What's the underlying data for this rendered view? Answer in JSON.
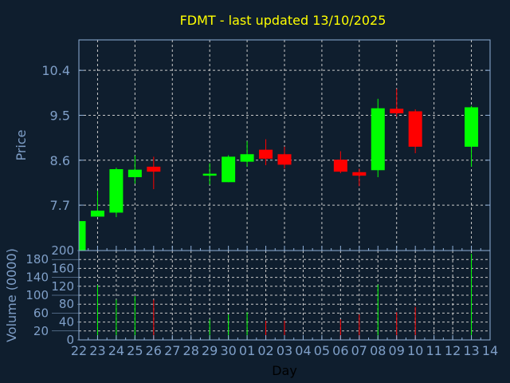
{
  "chart_data": [
    {
      "type": "candlestick",
      "title": "FDMT - last updated 13/10/2025",
      "ylabel": "Price",
      "ylim": [
        6.79,
        11.01
      ],
      "yticks": [
        7.7,
        8.6,
        9.5,
        10.4
      ],
      "grid": true,
      "colors": {
        "up": "#00ff00",
        "down": "#ff0000",
        "title": "#ffff00",
        "axis": "#7f9fc8",
        "background": "#0f1e2e"
      },
      "candles": [
        {
          "date": "2025-09-22",
          "open": 6.7,
          "high": 7.38,
          "low": 6.7,
          "close": 7.38
        },
        {
          "date": "2025-09-23",
          "open": 7.47,
          "high": 7.99,
          "low": 7.47,
          "close": 7.59
        },
        {
          "date": "2025-09-24",
          "open": 7.55,
          "high": 8.45,
          "low": 7.46,
          "close": 8.42
        },
        {
          "date": "2025-09-25",
          "open": 8.26,
          "high": 8.69,
          "low": 8.13,
          "close": 8.41
        },
        {
          "date": "2025-09-26",
          "open": 8.47,
          "high": 8.67,
          "low": 8.02,
          "close": 8.37
        },
        {
          "date": "2025-09-29",
          "open": 8.29,
          "high": 8.54,
          "low": 8.11,
          "close": 8.33
        },
        {
          "date": "2025-09-30",
          "open": 8.16,
          "high": 8.7,
          "low": 8.16,
          "close": 8.67
        },
        {
          "date": "2025-10-01",
          "open": 8.57,
          "high": 8.98,
          "low": 8.47,
          "close": 8.72
        },
        {
          "date": "2025-10-02",
          "open": 8.81,
          "high": 9.02,
          "low": 8.5,
          "close": 8.63
        },
        {
          "date": "2025-10-03",
          "open": 8.72,
          "high": 8.87,
          "low": 8.43,
          "close": 8.51
        },
        {
          "date": "2025-10-06",
          "open": 8.61,
          "high": 8.78,
          "low": 8.34,
          "close": 8.37
        },
        {
          "date": "2025-10-07",
          "open": 8.36,
          "high": 8.43,
          "low": 8.08,
          "close": 8.29
        },
        {
          "date": "2025-10-08",
          "open": 8.4,
          "high": 9.83,
          "low": 8.26,
          "close": 9.64
        },
        {
          "date": "2025-10-09",
          "open": 9.63,
          "high": 10.03,
          "low": 9.47,
          "close": 9.54
        },
        {
          "date": "2025-10-10",
          "open": 9.58,
          "high": 9.62,
          "low": 8.74,
          "close": 8.87
        },
        {
          "date": "2025-10-13",
          "open": 8.87,
          "high": 9.69,
          "low": 8.47,
          "close": 9.66
        }
      ]
    },
    {
      "type": "bar",
      "xlabel": "Day",
      "ylabel": "Volume (0000)",
      "ylim": [
        0,
        200
      ],
      "yticks": [
        0,
        20,
        40,
        60,
        80,
        100,
        120,
        140,
        160,
        180,
        200
      ],
      "grid": true,
      "xlim": [
        "2025-09-22",
        "2025-10-14"
      ],
      "xtick_labels": [
        "22",
        "23",
        "24",
        "25",
        "26",
        "27",
        "28",
        "29",
        "30",
        "01",
        "02",
        "03",
        "04",
        "05",
        "06",
        "07",
        "08",
        "09",
        "10",
        "11",
        "12",
        "13",
        "14"
      ],
      "bars": [
        {
          "date": "2025-09-23",
          "value": 123,
          "direction": "up"
        },
        {
          "date": "2025-09-24",
          "value": 90,
          "direction": "up"
        },
        {
          "date": "2025-09-25",
          "value": 98,
          "direction": "up"
        },
        {
          "date": "2025-09-26",
          "value": 90,
          "direction": "down"
        },
        {
          "date": "2025-09-29",
          "value": 46,
          "direction": "up"
        },
        {
          "date": "2025-09-30",
          "value": 57,
          "direction": "up"
        },
        {
          "date": "2025-10-01",
          "value": 62,
          "direction": "up"
        },
        {
          "date": "2025-10-02",
          "value": 43,
          "direction": "down"
        },
        {
          "date": "2025-10-03",
          "value": 43,
          "direction": "down"
        },
        {
          "date": "2025-10-06",
          "value": 46,
          "direction": "down"
        },
        {
          "date": "2025-10-07",
          "value": 57,
          "direction": "down"
        },
        {
          "date": "2025-10-08",
          "value": 124,
          "direction": "up"
        },
        {
          "date": "2025-10-09",
          "value": 62,
          "direction": "down"
        },
        {
          "date": "2025-10-10",
          "value": 74,
          "direction": "down"
        },
        {
          "date": "2025-10-13",
          "value": 193,
          "direction": "up"
        }
      ]
    }
  ]
}
